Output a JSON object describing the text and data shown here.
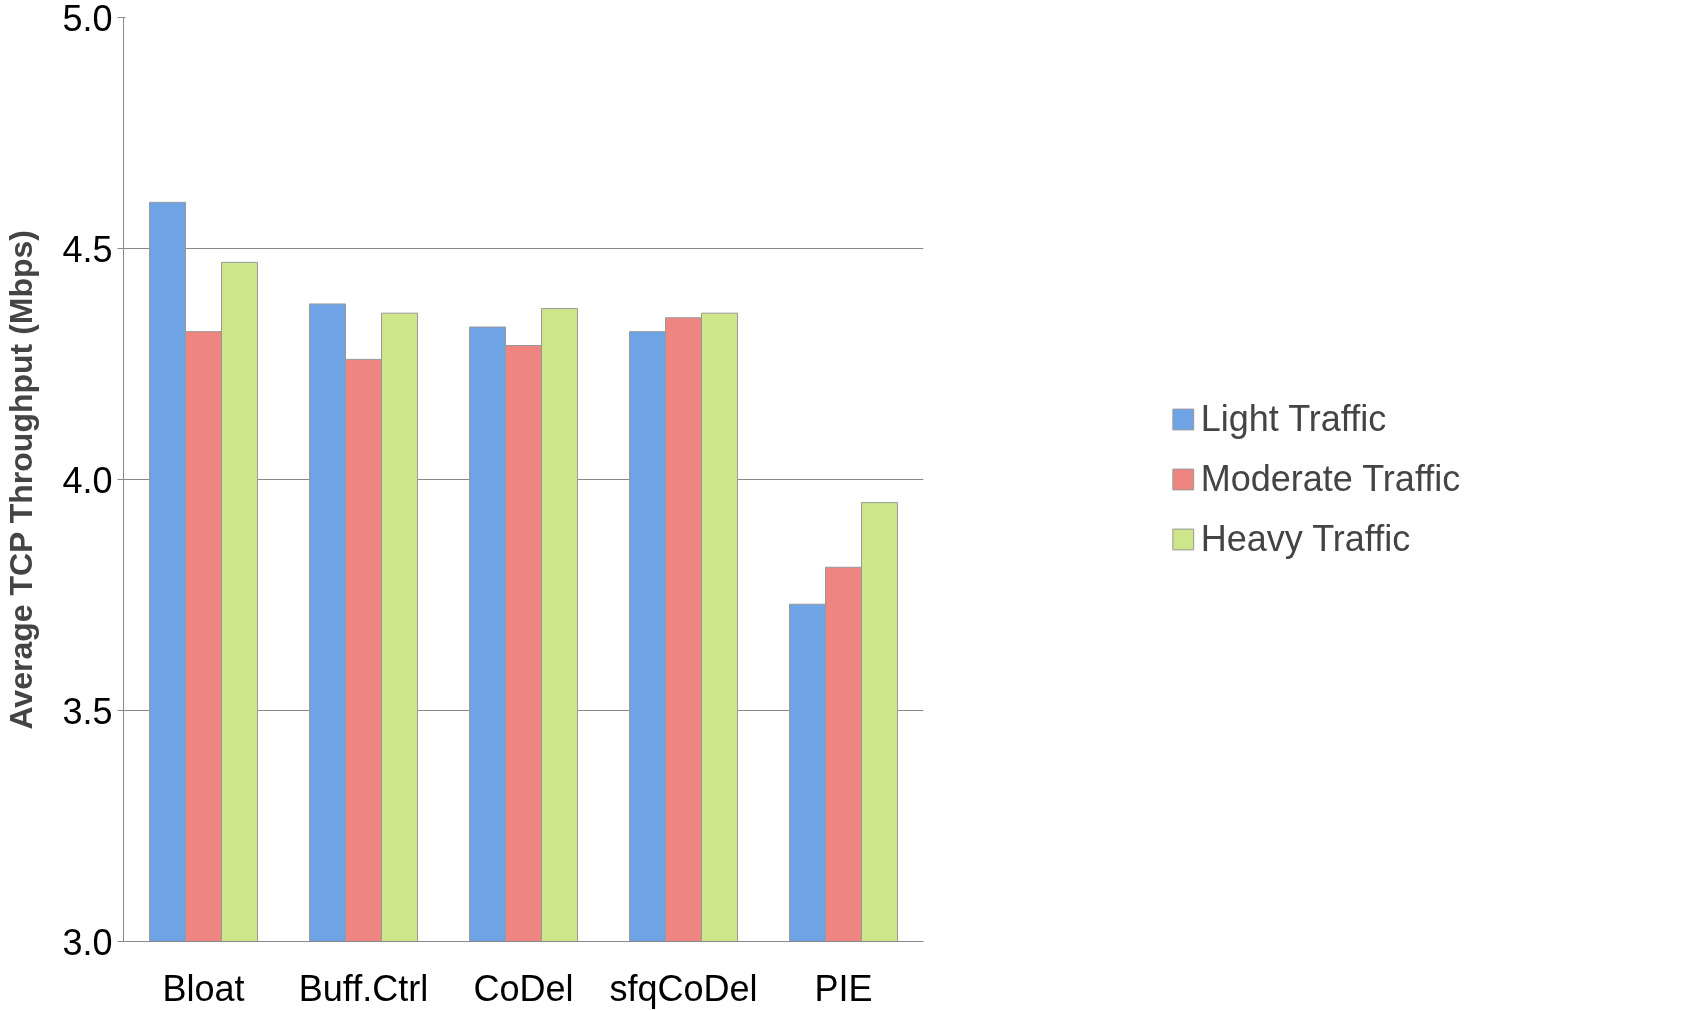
{
  "chart_data": {
    "type": "bar",
    "ylabel": "Average TCP Throughput (Mbps)",
    "categories": [
      "Bloat",
      "Buff.Ctrl",
      "CoDel",
      "sfqCoDel",
      "PIE"
    ],
    "series": [
      {
        "name": "Light Traffic",
        "color": "#6ea4e6",
        "values": [
          4.6,
          4.38,
          4.33,
          4.32,
          3.73
        ]
      },
      {
        "name": "Moderate Traffic",
        "color": "#ef8580",
        "values": [
          4.32,
          4.26,
          4.29,
          4.35,
          3.81
        ]
      },
      {
        "name": "Heavy Traffic",
        "color": "#cde68a",
        "values": [
          4.47,
          4.36,
          4.37,
          4.36,
          3.95
        ]
      }
    ],
    "ylim": [
      3.0,
      5.0
    ],
    "yticks": [
      {
        "value": 3.0,
        "label": "3.0"
      },
      {
        "value": 3.5,
        "label": "3.5"
      },
      {
        "value": 4.0,
        "label": "4.0"
      },
      {
        "value": 4.5,
        "label": "4.5"
      },
      {
        "value": 5.0,
        "label": "5.0"
      }
    ],
    "grid": "y",
    "legend": "right"
  }
}
